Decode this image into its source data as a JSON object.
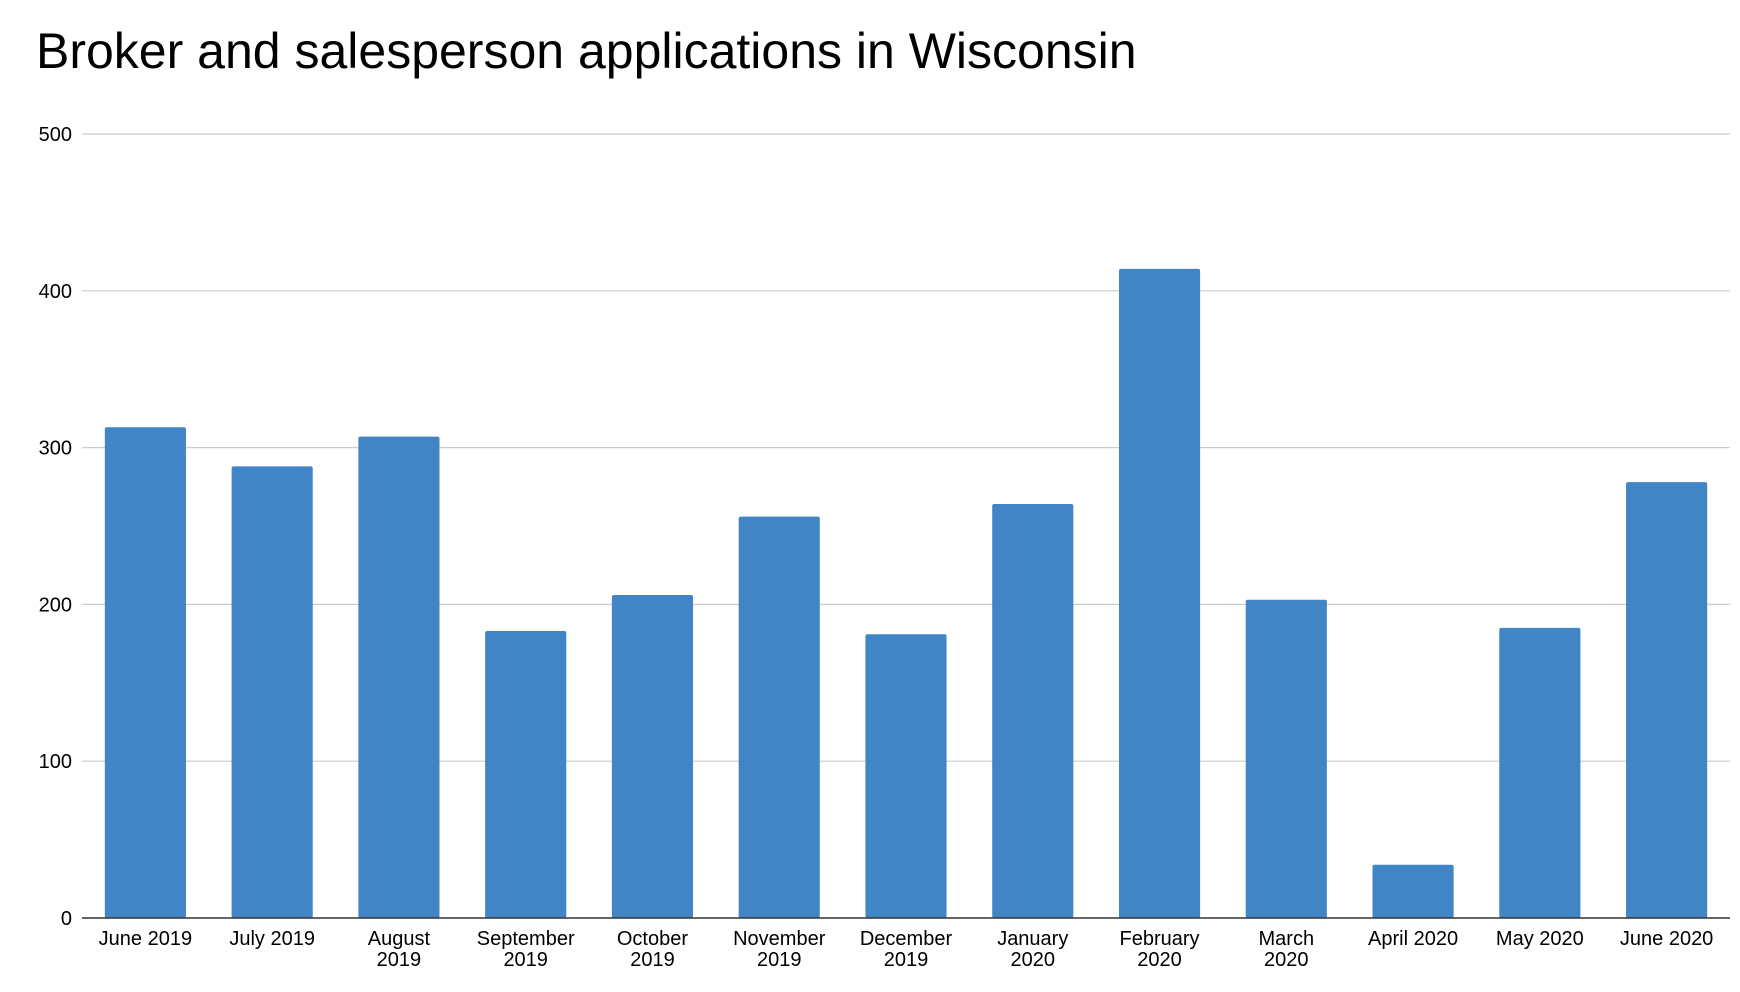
{
  "chart_data": {
    "type": "bar",
    "title": "Broker and salesperson applications in Wisconsin",
    "xlabel": "",
    "ylabel": "",
    "ylim": [
      0,
      500
    ],
    "yticks": [
      0,
      100,
      200,
      300,
      400,
      500
    ],
    "grid": true,
    "legend": "none",
    "bar_color": "#4285c6",
    "categories": [
      [
        "June 2019"
      ],
      [
        "July 2019"
      ],
      [
        "August",
        "2019"
      ],
      [
        "September",
        "2019"
      ],
      [
        "October",
        "2019"
      ],
      [
        "November",
        "2019"
      ],
      [
        "December",
        "2019"
      ],
      [
        "January",
        "2020"
      ],
      [
        "February",
        "2020"
      ],
      [
        "March",
        "2020"
      ],
      [
        "April 2020"
      ],
      [
        "May 2020"
      ],
      [
        "June 2020"
      ]
    ],
    "values": [
      313,
      288,
      307,
      183,
      206,
      256,
      181,
      264,
      414,
      203,
      34,
      185,
      278
    ]
  }
}
